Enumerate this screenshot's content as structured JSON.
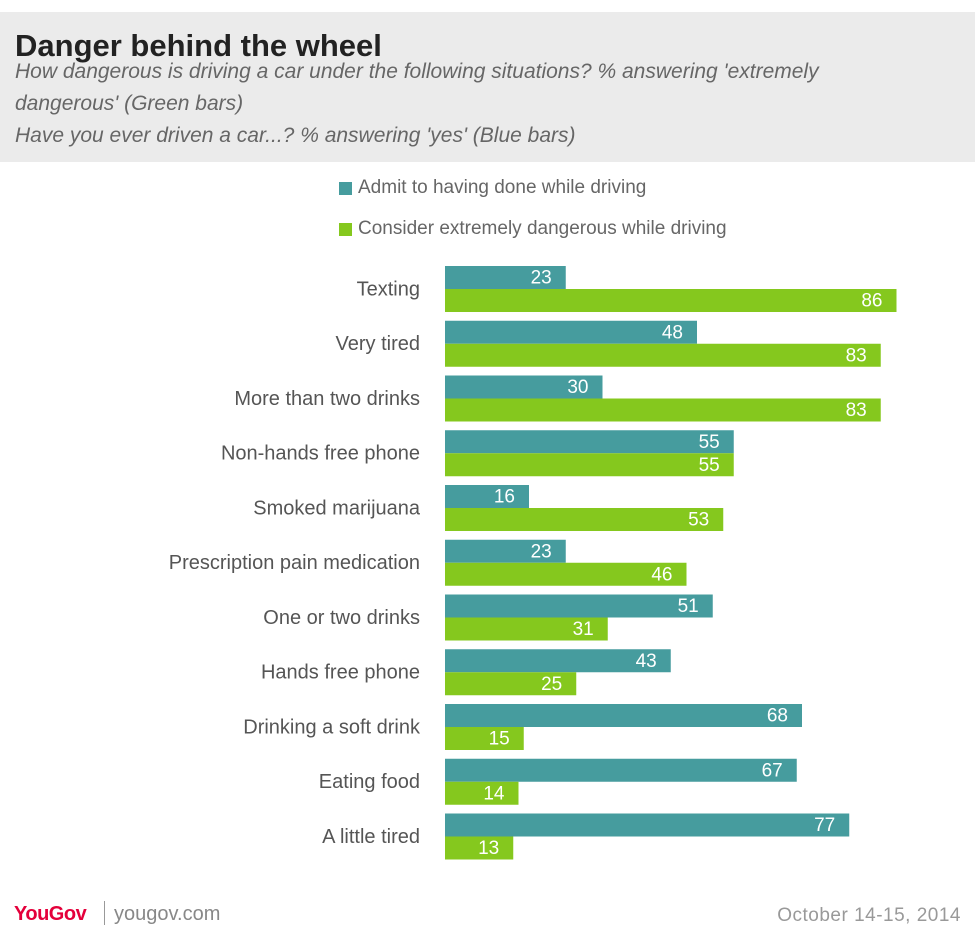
{
  "title": "Danger behind the wheel",
  "subtitle_lines": [
    "How dangerous is driving a car under the following situations? % answering 'extremely",
    "dangerous' (Green bars)",
    "Have you ever driven a car...? % answering 'yes' (Blue bars)"
  ],
  "colors": {
    "blue": "#469c9e",
    "green": "#85c81e",
    "header_bg": "#ebebeb",
    "brand": "#e4003b"
  },
  "footer": {
    "logo": "YouGov",
    "site": "yougov.com",
    "date": "October 14-15, 2014"
  },
  "chart_data": {
    "type": "bar",
    "orientation": "horizontal",
    "categories": [
      "Texting",
      "Very tired",
      "More than two drinks",
      "Non-hands free phone",
      "Smoked marijuana",
      "Prescription pain medication",
      "One or two drinks",
      "Hands free phone",
      "Drinking a soft drink",
      "Eating food",
      "A little tired"
    ],
    "series": [
      {
        "name": "Admit to having done while driving",
        "color": "#469c9e",
        "values": [
          23,
          48,
          30,
          55,
          16,
          23,
          51,
          43,
          68,
          67,
          77
        ]
      },
      {
        "name": "Consider extremely dangerous while driving",
        "color": "#85c81e",
        "values": [
          86,
          83,
          83,
          55,
          53,
          46,
          31,
          25,
          15,
          14,
          13
        ]
      }
    ],
    "xlim": [
      0,
      100
    ],
    "grid": false,
    "legend_position": "top"
  }
}
